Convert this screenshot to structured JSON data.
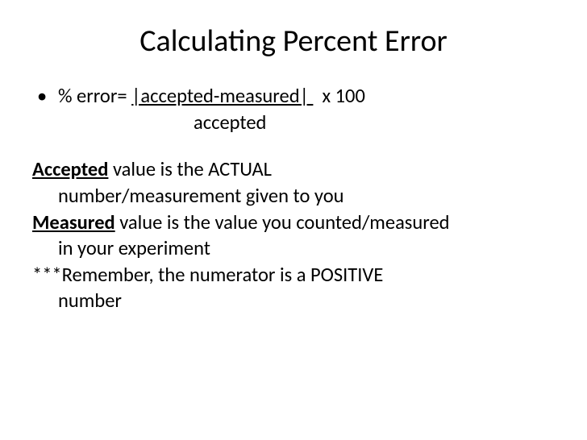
{
  "title": "Calculating Percent Error",
  "bullet_glyph": "•",
  "formula": {
    "prefix": "% error= ",
    "numerator": "|accepted-measured| ",
    "suffix": "  x 100",
    "denominator": "accepted"
  },
  "def_accepted": {
    "term": "Accepted",
    "line1_rest": " value is the ACTUAL",
    "line2": "number/measurement given to you"
  },
  "def_measured": {
    "term": "Measured",
    "line1_rest": " value is the value you counted/measured",
    "line2": "in your experiment"
  },
  "reminder": {
    "line1": "***Remember, the numerator is a POSITIVE",
    "line2": "number"
  },
  "colors": {
    "background": "#ffffff",
    "text": "#000000"
  },
  "fontsize": {
    "title": 38,
    "body": 24.5
  }
}
